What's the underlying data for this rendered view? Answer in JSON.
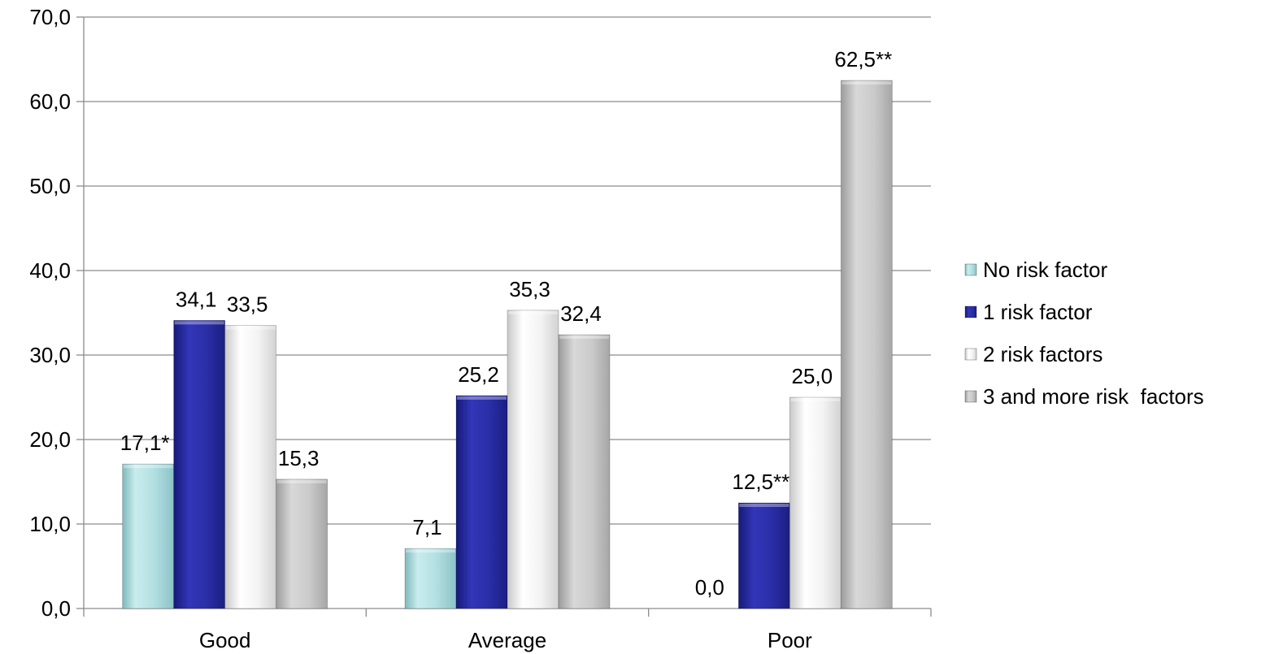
{
  "chart_data": {
    "type": "bar",
    "title": "",
    "xlabel": "",
    "ylabel": "",
    "categories": [
      "Good",
      "Average",
      "Poor"
    ],
    "ylim": [
      0,
      70
    ],
    "yticks": [
      0,
      10,
      20,
      30,
      40,
      50,
      60,
      70
    ],
    "ytick_labels": [
      "0,0",
      "10,0",
      "20,0",
      "30,0",
      "40,0",
      "50,0",
      "60,0",
      "70,0"
    ],
    "grid": true,
    "legend_position": "right",
    "series": [
      {
        "name": "No risk factor",
        "color": "#b8e4e6",
        "values": [
          17.1,
          7.1,
          0.0
        ],
        "labels": [
          "17,1*",
          "7,1",
          "0,0"
        ]
      },
      {
        "name": "1 risk factor",
        "color": "#2b2fa8",
        "values": [
          34.1,
          25.2,
          12.5
        ],
        "labels": [
          "34,1",
          "25,2",
          "12,5**"
        ]
      },
      {
        "name": "2 risk factors",
        "color": "#f2f2f2",
        "values": [
          33.5,
          35.3,
          25.0
        ],
        "labels": [
          "33,5",
          "35,3",
          "25,0"
        ]
      },
      {
        "name": "3 and more risk  factors",
        "color": "#c8c8c8",
        "values": [
          15.3,
          32.4,
          62.5
        ],
        "labels": [
          "15,3",
          "32,4",
          "62,5**"
        ]
      }
    ]
  }
}
